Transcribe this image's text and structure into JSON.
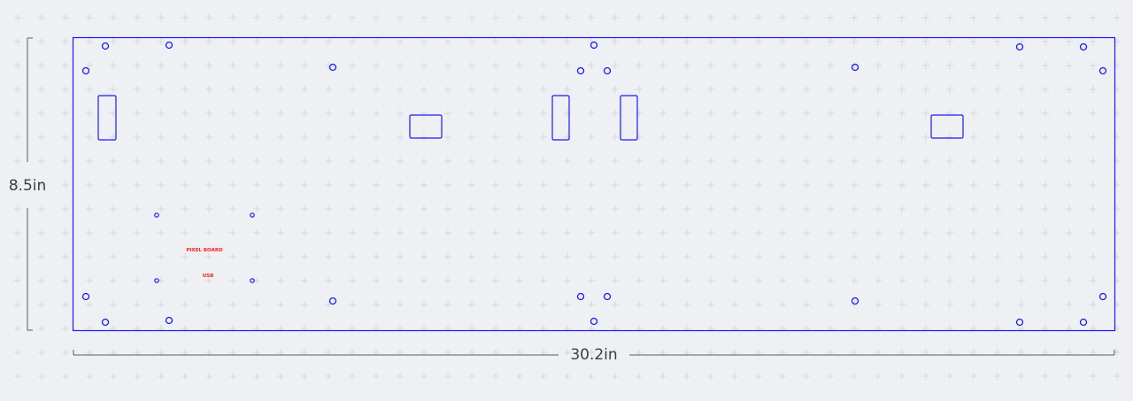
{
  "dimensions": {
    "height_label": "8.5in",
    "width_label": "30.2in"
  },
  "labels": {
    "pixel_board": "PIXEL BOARD",
    "usb": "USB"
  },
  "colors": {
    "background": "#eef0f3",
    "grid_cross": "#d4d8de",
    "outline": "#1a1aff",
    "annotation": "#ff2020",
    "dimension_line": "#555a60",
    "dimension_text": "#3a3f45"
  }
}
